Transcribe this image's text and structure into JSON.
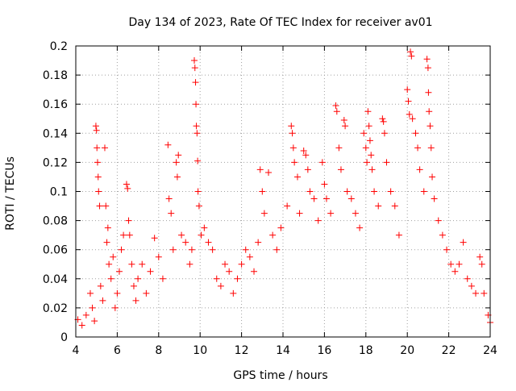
{
  "chart_data": {
    "type": "scatter",
    "title": "Day 134 of 2023, Rate Of TEC Index for receiver av01",
    "xlabel": "GPS time / hours",
    "ylabel": "ROTI / TECUs",
    "xlim": [
      4,
      24
    ],
    "ylim": [
      0,
      0.2
    ],
    "x_ticks": [
      4,
      6,
      8,
      10,
      12,
      14,
      16,
      18,
      20,
      22,
      24
    ],
    "y_ticks": [
      0,
      0.02,
      0.04,
      0.06,
      0.08,
      0.1,
      0.12,
      0.14,
      0.16,
      0.18,
      0.2
    ],
    "x_tick_labels": [
      "4",
      "6",
      "8",
      "10",
      "12",
      "14",
      "16",
      "18",
      "20",
      "22",
      "24"
    ],
    "y_tick_labels": [
      "0",
      "0.02",
      "0.04",
      "0.06",
      "0.08",
      "0.1",
      "0.12",
      "0.14",
      "0.16",
      "0.18",
      "0.2"
    ],
    "grid": true,
    "marker": "+",
    "color": "#ff0000",
    "series": [
      {
        "points": [
          [
            4.1,
            0.012
          ],
          [
            4.3,
            0.008
          ],
          [
            4.5,
            0.015
          ],
          [
            4.7,
            0.03
          ],
          [
            4.8,
            0.02
          ],
          [
            4.9,
            0.011
          ],
          [
            4.97,
            0.145
          ],
          [
            5.0,
            0.142
          ],
          [
            5.02,
            0.13
          ],
          [
            5.05,
            0.12
          ],
          [
            5.08,
            0.11
          ],
          [
            5.1,
            0.1
          ],
          [
            5.15,
            0.09
          ],
          [
            5.2,
            0.035
          ],
          [
            5.3,
            0.025
          ],
          [
            5.4,
            0.13
          ],
          [
            5.45,
            0.09
          ],
          [
            5.5,
            0.065
          ],
          [
            5.55,
            0.075
          ],
          [
            5.6,
            0.05
          ],
          [
            5.7,
            0.04
          ],
          [
            5.8,
            0.055
          ],
          [
            5.9,
            0.02
          ],
          [
            6.0,
            0.03
          ],
          [
            6.1,
            0.045
          ],
          [
            6.2,
            0.06
          ],
          [
            6.3,
            0.07
          ],
          [
            6.45,
            0.105
          ],
          [
            6.5,
            0.102
          ],
          [
            6.55,
            0.08
          ],
          [
            6.6,
            0.07
          ],
          [
            6.7,
            0.05
          ],
          [
            6.8,
            0.035
          ],
          [
            6.9,
            0.025
          ],
          [
            7.0,
            0.04
          ],
          [
            7.2,
            0.05
          ],
          [
            7.4,
            0.03
          ],
          [
            7.6,
            0.045
          ],
          [
            7.8,
            0.068
          ],
          [
            8.0,
            0.055
          ],
          [
            8.2,
            0.04
          ],
          [
            8.45,
            0.132
          ],
          [
            8.5,
            0.095
          ],
          [
            8.6,
            0.085
          ],
          [
            8.7,
            0.06
          ],
          [
            8.85,
            0.12
          ],
          [
            8.9,
            0.11
          ],
          [
            8.95,
            0.125
          ],
          [
            9.1,
            0.07
          ],
          [
            9.3,
            0.065
          ],
          [
            9.5,
            0.05
          ],
          [
            9.6,
            0.06
          ],
          [
            9.72,
            0.19
          ],
          [
            9.75,
            0.185
          ],
          [
            9.78,
            0.175
          ],
          [
            9.8,
            0.16
          ],
          [
            9.82,
            0.145
          ],
          [
            9.85,
            0.14
          ],
          [
            9.88,
            0.121
          ],
          [
            9.9,
            0.1
          ],
          [
            9.95,
            0.09
          ],
          [
            10.05,
            0.07
          ],
          [
            10.2,
            0.075
          ],
          [
            10.4,
            0.065
          ],
          [
            10.6,
            0.06
          ],
          [
            10.8,
            0.04
          ],
          [
            11.0,
            0.035
          ],
          [
            11.2,
            0.05
          ],
          [
            11.4,
            0.045
          ],
          [
            11.6,
            0.03
          ],
          [
            11.8,
            0.04
          ],
          [
            12.0,
            0.05
          ],
          [
            12.2,
            0.06
          ],
          [
            12.4,
            0.055
          ],
          [
            12.6,
            0.045
          ],
          [
            12.8,
            0.065
          ],
          [
            12.9,
            0.115
          ],
          [
            13.0,
            0.1
          ],
          [
            13.1,
            0.085
          ],
          [
            13.3,
            0.113
          ],
          [
            13.5,
            0.07
          ],
          [
            13.7,
            0.06
          ],
          [
            13.9,
            0.075
          ],
          [
            14.2,
            0.09
          ],
          [
            14.4,
            0.145
          ],
          [
            14.45,
            0.14
          ],
          [
            14.5,
            0.13
          ],
          [
            14.55,
            0.12
          ],
          [
            14.7,
            0.11
          ],
          [
            14.8,
            0.085
          ],
          [
            15.0,
            0.128
          ],
          [
            15.1,
            0.125
          ],
          [
            15.2,
            0.115
          ],
          [
            15.3,
            0.1
          ],
          [
            15.5,
            0.095
          ],
          [
            15.7,
            0.08
          ],
          [
            15.9,
            0.12
          ],
          [
            16.0,
            0.105
          ],
          [
            16.1,
            0.095
          ],
          [
            16.3,
            0.085
          ],
          [
            16.55,
            0.159
          ],
          [
            16.6,
            0.155
          ],
          [
            16.7,
            0.13
          ],
          [
            16.8,
            0.115
          ],
          [
            16.95,
            0.149
          ],
          [
            17.0,
            0.145
          ],
          [
            17.1,
            0.1
          ],
          [
            17.3,
            0.095
          ],
          [
            17.5,
            0.085
          ],
          [
            17.7,
            0.075
          ],
          [
            17.9,
            0.14
          ],
          [
            18.0,
            0.13
          ],
          [
            18.05,
            0.12
          ],
          [
            18.1,
            0.155
          ],
          [
            18.15,
            0.145
          ],
          [
            18.2,
            0.135
          ],
          [
            18.25,
            0.125
          ],
          [
            18.3,
            0.115
          ],
          [
            18.4,
            0.1
          ],
          [
            18.6,
            0.09
          ],
          [
            18.8,
            0.15
          ],
          [
            18.85,
            0.148
          ],
          [
            18.9,
            0.14
          ],
          [
            19.0,
            0.12
          ],
          [
            19.2,
            0.1
          ],
          [
            19.4,
            0.09
          ],
          [
            19.6,
            0.07
          ],
          [
            20.0,
            0.17
          ],
          [
            20.05,
            0.162
          ],
          [
            20.1,
            0.153
          ],
          [
            20.15,
            0.196
          ],
          [
            20.2,
            0.193
          ],
          [
            20.25,
            0.15
          ],
          [
            20.4,
            0.14
          ],
          [
            20.5,
            0.13
          ],
          [
            20.6,
            0.115
          ],
          [
            20.8,
            0.1
          ],
          [
            20.95,
            0.191
          ],
          [
            21.0,
            0.185
          ],
          [
            21.02,
            0.168
          ],
          [
            21.05,
            0.155
          ],
          [
            21.1,
            0.145
          ],
          [
            21.15,
            0.13
          ],
          [
            21.2,
            0.11
          ],
          [
            21.3,
            0.095
          ],
          [
            21.5,
            0.08
          ],
          [
            21.7,
            0.07
          ],
          [
            21.9,
            0.06
          ],
          [
            22.1,
            0.05
          ],
          [
            22.3,
            0.045
          ],
          [
            22.5,
            0.05
          ],
          [
            22.7,
            0.065
          ],
          [
            22.9,
            0.04
          ],
          [
            23.1,
            0.035
          ],
          [
            23.3,
            0.03
          ],
          [
            23.5,
            0.055
          ],
          [
            23.6,
            0.05
          ],
          [
            23.7,
            0.03
          ],
          [
            23.9,
            0.015
          ],
          [
            24.0,
            0.01
          ]
        ]
      }
    ]
  }
}
